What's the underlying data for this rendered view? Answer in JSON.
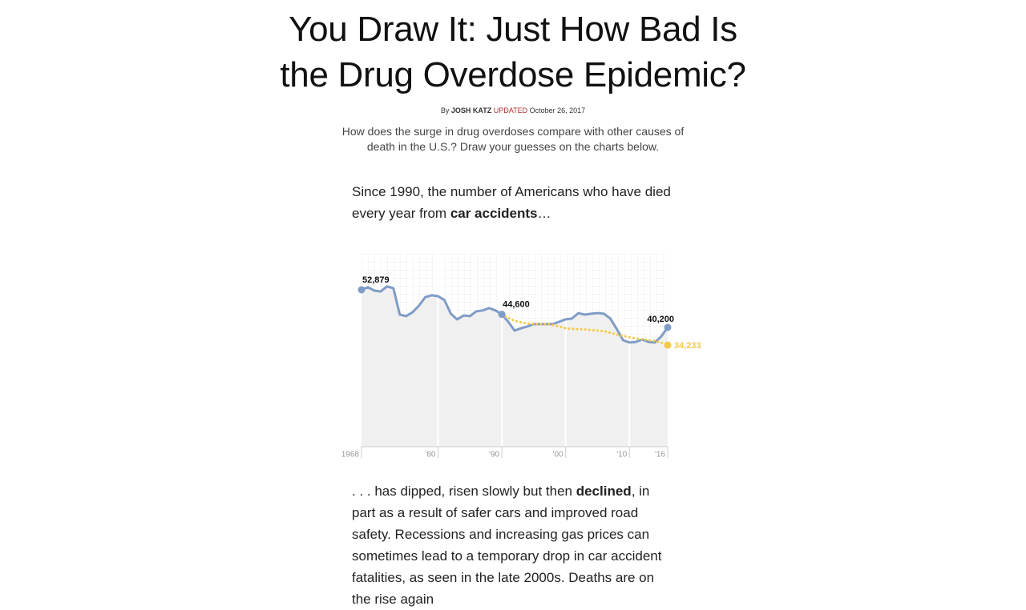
{
  "header": {
    "title": "You Draw It: Just How Bad Is the Drug Overdose Epidemic?",
    "byline": {
      "by": "By",
      "author": "JOSH KATZ",
      "status": "UPDATED",
      "date": "October 26, 2017"
    },
    "deck": "How does the surge in drug overdoses compare with other causes of death in the U.S.? Draw your guesses on the charts below."
  },
  "intro": {
    "parts": [
      "Since 1990, the number of Americans who have died every year from ",
      "car accidents",
      "…"
    ]
  },
  "chart_data": {
    "type": "line",
    "x": [
      1968,
      1969,
      1970,
      1971,
      1972,
      1973,
      1974,
      1975,
      1976,
      1977,
      1978,
      1979,
      1980,
      1981,
      1982,
      1983,
      1984,
      1985,
      1986,
      1987,
      1988,
      1989,
      1990,
      1991,
      1992,
      1993,
      1994,
      1995,
      1996,
      1997,
      1998,
      1999,
      2000,
      2001,
      2002,
      2003,
      2004,
      2005,
      2006,
      2007,
      2008,
      2009,
      2010,
      2011,
      2012,
      2013,
      2014,
      2015,
      2016
    ],
    "series": [
      {
        "color": "#7f9cc6",
        "values": [
          52879,
          53700,
          52600,
          52300,
          54000,
          53400,
          44500,
          44000,
          45300,
          47500,
          50400,
          51000,
          50700,
          49400,
          44800,
          42900,
          44200,
          44000,
          45600,
          45900,
          46700,
          45900,
          44600,
          42100,
          39100,
          39900,
          40500,
          41300,
          41300,
          41300,
          41300,
          42100,
          42900,
          43200,
          45000,
          44500,
          44800,
          45000,
          44800,
          43200,
          39700,
          35900,
          35100,
          35300,
          36100,
          35300,
          35100,
          37200,
          40200
        ],
        "value_labels": [
          "52,879",
          null,
          null,
          null,
          null,
          null,
          null,
          null,
          null,
          null,
          null,
          null,
          null,
          null,
          null,
          null,
          null,
          null,
          null,
          null,
          null,
          null,
          "44,600",
          null,
          null,
          null,
          null,
          null,
          null,
          null,
          null,
          null,
          null,
          null,
          null,
          null,
          null,
          null,
          null,
          null,
          null,
          null,
          null,
          null,
          null,
          null,
          null,
          null,
          "40,200"
        ]
      },
      {
        "color": "#f2c94c",
        "dashed": true,
        "values": [
          null,
          null,
          null,
          null,
          null,
          null,
          null,
          null,
          null,
          null,
          null,
          null,
          null,
          null,
          null,
          null,
          null,
          null,
          null,
          null,
          null,
          null,
          44600,
          43400,
          42400,
          41900,
          41500,
          41300,
          41300,
          41300,
          41000,
          40500,
          39900,
          39700,
          39600,
          39500,
          39300,
          39100,
          38900,
          38400,
          37800,
          37300,
          36900,
          36500,
          36200,
          35900,
          35600,
          35000,
          34233
        ],
        "value_labels": [
          null,
          null,
          null,
          null,
          null,
          null,
          null,
          null,
          null,
          null,
          null,
          null,
          null,
          null,
          null,
          null,
          null,
          null,
          null,
          null,
          null,
          null,
          null,
          null,
          null,
          null,
          null,
          null,
          null,
          null,
          null,
          null,
          null,
          null,
          null,
          null,
          null,
          null,
          null,
          null,
          null,
          null,
          null,
          null,
          null,
          null,
          null,
          null,
          "34,233"
        ]
      }
    ],
    "xlim": [
      1968,
      2016
    ],
    "xticks": [
      1968,
      {
        "value": 1980,
        "label": "'80"
      },
      {
        "value": 1990,
        "label": "'90"
      },
      {
        "value": 2000,
        "label": "'00"
      },
      {
        "value": 2010,
        "label": "'10"
      },
      {
        "value": 2016,
        "label": "'16"
      }
    ],
    "ylim": [
      0,
      65000
    ],
    "area_color": "#f0f0f0"
  },
  "body": {
    "parts": [
      ". . . has dipped, risen slowly but then ",
      "declined",
      ", in part as a result of safer cars and improved road safety. Recessions and increasing gas prices can sometimes lead to a temporary drop in car accident fatalities, as seen in the late 2000s. Deaths are on the rise again"
    ]
  }
}
